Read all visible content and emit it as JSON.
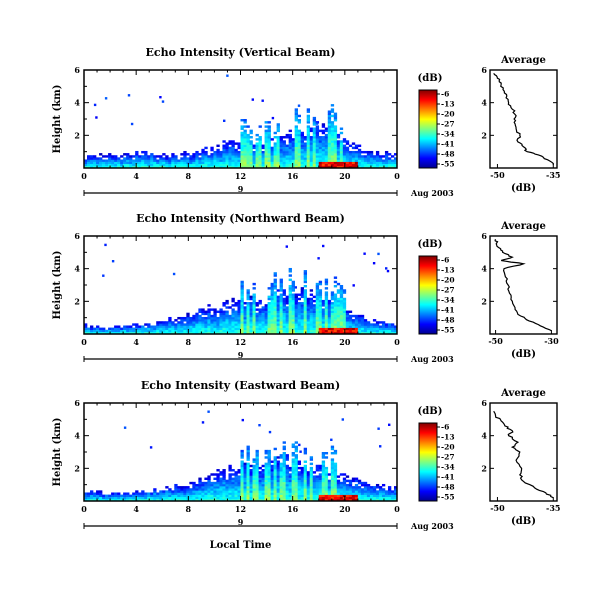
{
  "chart_data": [
    {
      "type": "heatmap",
      "title": "Echo Intensity (Vertical Beam)",
      "ylabel": "Height (km)",
      "y_tick_labels": [
        "2",
        "4",
        "6"
      ],
      "ylim": [
        0,
        6
      ],
      "x_tick_labels": [
        "0",
        "4",
        "8",
        "12",
        "16",
        "20",
        "0"
      ],
      "xlim": [
        0,
        24
      ],
      "day_label": "9",
      "date_label": "Aug 2003",
      "colorbar": {
        "unit": "(dB)",
        "ticks": [
          "-6",
          "-13",
          "-20",
          "-27",
          "-34",
          "-41",
          "-48",
          "-55"
        ],
        "range": [
          -55,
          -6
        ]
      },
      "echo_layer_top_km": [
        0.7,
        0.75,
        0.8,
        0.85,
        0.9,
        1.0,
        0.9,
        0.8,
        0.9,
        1.1,
        1.3,
        1.5,
        1.8,
        1.7,
        1.6,
        1.9,
        2.2,
        2.0,
        2.6,
        2.3,
        1.8,
        1.4,
        1.0,
        0.9,
        0.8
      ],
      "average_profile": {
        "title": "Average",
        "xlabel": "(dB)",
        "x_tick_labels": [
          "-50",
          "-35"
        ],
        "xlim": [
          -52,
          -34
        ],
        "y_tick_labels": [
          "2",
          "4",
          "6"
        ],
        "ylim": [
          0,
          6
        ],
        "height_km": [
          0.2,
          0.5,
          0.8,
          1.0,
          1.3,
          1.6,
          2.0,
          2.4,
          2.8,
          3.2,
          3.6,
          4.0,
          4.4,
          4.8,
          5.2,
          5.5,
          5.8
        ],
        "intensity_db": [
          -35,
          -36.5,
          -39,
          -42,
          -43,
          -44.5,
          -44,
          -45,
          -45.5,
          -45,
          -46,
          -47,
          -47.5,
          -48.5,
          -49,
          -50,
          -51
        ]
      }
    },
    {
      "type": "heatmap",
      "title": "Echo Intensity (Northward Beam)",
      "ylabel": "Height (km)",
      "y_tick_labels": [
        "2",
        "4",
        "6"
      ],
      "ylim": [
        0,
        6
      ],
      "x_tick_labels": [
        "0",
        "4",
        "8",
        "12",
        "16",
        "20",
        "0"
      ],
      "xlim": [
        0,
        24
      ],
      "day_label": "9",
      "date_label": "Aug 2003",
      "colorbar": {
        "unit": "(dB)",
        "ticks": [
          "-6",
          "-13",
          "-20",
          "-27",
          "-34",
          "-41",
          "-48",
          "-55"
        ],
        "range": [
          -55,
          -6
        ]
      },
      "echo_layer_top_km": [
        0.6,
        0.5,
        0.45,
        0.5,
        0.6,
        0.7,
        0.8,
        1.0,
        1.2,
        1.5,
        1.7,
        1.9,
        2.3,
        2.0,
        2.1,
        2.5,
        2.8,
        2.4,
        2.6,
        2.2,
        1.6,
        1.2,
        0.9,
        0.8,
        0.7
      ],
      "average_profile": {
        "title": "Average",
        "xlabel": "(dB)",
        "x_tick_labels": [
          "-50",
          "-30"
        ],
        "xlim": [
          -52,
          -28
        ],
        "y_tick_labels": [
          "2",
          "4",
          "6"
        ],
        "ylim": [
          0,
          6
        ],
        "height_km": [
          0.2,
          0.5,
          0.8,
          1.1,
          1.5,
          2.0,
          2.5,
          3.0,
          3.5,
          4.0,
          4.3,
          4.5,
          4.7,
          5.0,
          5.3,
          5.6,
          5.8
        ],
        "intensity_db": [
          -30,
          -34,
          -38,
          -41,
          -43,
          -44,
          -45,
          -45.5,
          -46.5,
          -47,
          -40,
          -48,
          -44,
          -47.5,
          -49,
          -49.5,
          -50
        ]
      }
    },
    {
      "type": "heatmap",
      "title": "Echo Intensity (Eastward Beam)",
      "ylabel": "Height (km)",
      "y_tick_labels": [
        "2",
        "4",
        "6"
      ],
      "ylim": [
        0,
        6
      ],
      "x_tick_labels": [
        "0",
        "4",
        "8",
        "12",
        "16",
        "20",
        "0"
      ],
      "xlim": [
        0,
        24
      ],
      "day_label": "9",
      "date_label": "Aug 2003",
      "xlabel": "Local Time",
      "colorbar": {
        "unit": "(dB)",
        "ticks": [
          "-6",
          "-13",
          "-20",
          "-27",
          "-34",
          "-41",
          "-48",
          "-55"
        ],
        "range": [
          -55,
          -6
        ]
      },
      "echo_layer_top_km": [
        0.6,
        0.55,
        0.5,
        0.55,
        0.6,
        0.7,
        0.8,
        0.9,
        1.1,
        1.4,
        1.7,
        2.0,
        2.3,
        2.1,
        2.3,
        2.6,
        2.5,
        2.2,
        2.4,
        2.1,
        1.6,
        1.3,
        1.0,
        0.9,
        0.8
      ],
      "average_profile": {
        "title": "Average",
        "xlabel": "(dB)",
        "x_tick_labels": [
          "-50",
          "-35"
        ],
        "xlim": [
          -52,
          -34
        ],
        "y_tick_labels": [
          "2",
          "4",
          "6"
        ],
        "ylim": [
          0,
          6
        ],
        "height_km": [
          0.2,
          0.5,
          0.8,
          1.2,
          1.6,
          2.0,
          2.5,
          3.0,
          3.3,
          3.6,
          4.0,
          4.3,
          4.6,
          4.9,
          5.2,
          5.5
        ],
        "intensity_db": [
          -35,
          -37,
          -40,
          -43,
          -44,
          -43.5,
          -45,
          -44,
          -46,
          -44.5,
          -47,
          -46,
          -48,
          -49,
          -50.5,
          -51
        ]
      }
    }
  ]
}
